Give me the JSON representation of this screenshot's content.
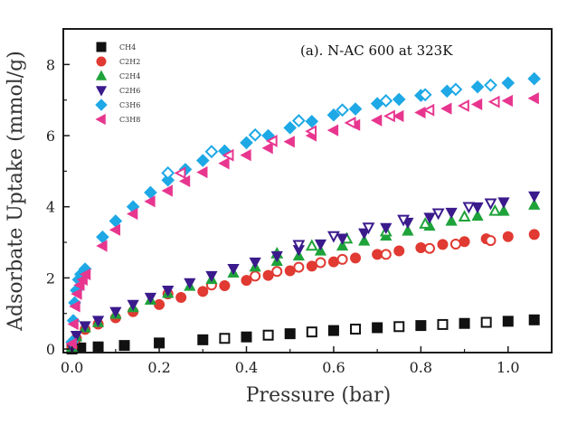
{
  "chart_data": {
    "type": "scatter",
    "annotation": "(a). N-AC 600 at 323K",
    "xlabel": "Pressure (bar)",
    "ylabel": "Adsorbate Uptake (mmol/g)",
    "xlim": [
      -0.02,
      1.1
    ],
    "ylim": [
      -0.1,
      9.0
    ],
    "xticks": [
      0.0,
      0.2,
      0.4,
      0.6,
      0.8,
      1.0
    ],
    "xtick_labels": [
      "0.0",
      "0.2",
      "0.4",
      "0.6",
      "0.8",
      "1.0"
    ],
    "yticks": [
      0,
      2,
      4,
      6,
      8
    ],
    "ytick_labels": [
      "0",
      "2",
      "4",
      "6",
      "8"
    ],
    "grid": false,
    "legend_position": "top-left",
    "series": [
      {
        "name": "CH4",
        "color": "#111111",
        "marker": "square",
        "adsorption": [
          [
            0.0,
            0.0
          ],
          [
            0.02,
            0.03
          ],
          [
            0.06,
            0.06
          ],
          [
            0.12,
            0.1
          ],
          [
            0.2,
            0.17
          ],
          [
            0.3,
            0.26
          ],
          [
            0.4,
            0.34
          ],
          [
            0.5,
            0.43
          ],
          [
            0.6,
            0.52
          ],
          [
            0.7,
            0.6
          ],
          [
            0.8,
            0.66
          ],
          [
            0.9,
            0.72
          ],
          [
            1.0,
            0.78
          ],
          [
            1.06,
            0.82
          ]
        ],
        "desorption": [
          [
            0.95,
            0.75
          ],
          [
            0.85,
            0.69
          ],
          [
            0.75,
            0.63
          ],
          [
            0.65,
            0.56
          ],
          [
            0.55,
            0.48
          ],
          [
            0.45,
            0.39
          ],
          [
            0.35,
            0.3
          ]
        ]
      },
      {
        "name": "C2H2",
        "color": "#e03a32",
        "marker": "circle",
        "adsorption": [
          [
            0.0,
            0.05
          ],
          [
            0.01,
            0.3
          ],
          [
            0.03,
            0.55
          ],
          [
            0.06,
            0.7
          ],
          [
            0.1,
            0.88
          ],
          [
            0.14,
            1.05
          ],
          [
            0.2,
            1.25
          ],
          [
            0.25,
            1.45
          ],
          [
            0.3,
            1.62
          ],
          [
            0.35,
            1.78
          ],
          [
            0.4,
            1.93
          ],
          [
            0.45,
            2.07
          ],
          [
            0.5,
            2.2
          ],
          [
            0.55,
            2.33
          ],
          [
            0.6,
            2.45
          ],
          [
            0.65,
            2.56
          ],
          [
            0.7,
            2.66
          ],
          [
            0.75,
            2.76
          ],
          [
            0.8,
            2.85
          ],
          [
            0.85,
            2.94
          ],
          [
            0.9,
            3.02
          ],
          [
            0.95,
            3.1
          ],
          [
            1.0,
            3.16
          ],
          [
            1.06,
            3.22
          ]
        ],
        "desorption": [
          [
            0.96,
            3.05
          ],
          [
            0.88,
            2.95
          ],
          [
            0.82,
            2.83
          ],
          [
            0.72,
            2.66
          ],
          [
            0.62,
            2.52
          ],
          [
            0.57,
            2.43
          ],
          [
            0.52,
            2.3
          ],
          [
            0.47,
            2.18
          ],
          [
            0.42,
            2.05
          ],
          [
            0.32,
            1.8
          ],
          [
            0.22,
            1.55
          ]
        ]
      },
      {
        "name": "C2H4",
        "color": "#1ea33a",
        "marker": "triangle-up",
        "adsorption": [
          [
            0.0,
            0.05
          ],
          [
            0.01,
            0.35
          ],
          [
            0.03,
            0.6
          ],
          [
            0.06,
            0.75
          ],
          [
            0.1,
            0.98
          ],
          [
            0.14,
            1.17
          ],
          [
            0.18,
            1.38
          ],
          [
            0.22,
            1.57
          ],
          [
            0.27,
            1.77
          ],
          [
            0.32,
            1.96
          ],
          [
            0.37,
            2.14
          ],
          [
            0.42,
            2.31
          ],
          [
            0.47,
            2.47
          ],
          [
            0.52,
            2.62
          ],
          [
            0.57,
            2.76
          ],
          [
            0.62,
            2.9
          ],
          [
            0.67,
            3.04
          ],
          [
            0.72,
            3.18
          ],
          [
            0.77,
            3.32
          ],
          [
            0.82,
            3.46
          ],
          [
            0.87,
            3.6
          ],
          [
            0.93,
            3.74
          ],
          [
            0.99,
            3.88
          ],
          [
            1.06,
            4.05
          ]
        ],
        "desorption": [
          [
            0.97,
            3.88
          ],
          [
            0.9,
            3.72
          ],
          [
            0.81,
            3.52
          ],
          [
            0.72,
            3.3
          ],
          [
            0.63,
            3.1
          ],
          [
            0.55,
            2.9
          ],
          [
            0.47,
            2.68
          ]
        ]
      },
      {
        "name": "C2H6",
        "color": "#3b1a8c",
        "marker": "triangle-down",
        "adsorption": [
          [
            0.0,
            0.05
          ],
          [
            0.01,
            0.38
          ],
          [
            0.03,
            0.65
          ],
          [
            0.06,
            0.8
          ],
          [
            0.1,
            1.05
          ],
          [
            0.14,
            1.25
          ],
          [
            0.18,
            1.45
          ],
          [
            0.22,
            1.65
          ],
          [
            0.27,
            1.86
          ],
          [
            0.32,
            2.06
          ],
          [
            0.37,
            2.26
          ],
          [
            0.42,
            2.44
          ],
          [
            0.47,
            2.62
          ],
          [
            0.52,
            2.79
          ],
          [
            0.57,
            2.95
          ],
          [
            0.62,
            3.11
          ],
          [
            0.67,
            3.26
          ],
          [
            0.72,
            3.41
          ],
          [
            0.77,
            3.56
          ],
          [
            0.82,
            3.7
          ],
          [
            0.87,
            3.84
          ],
          [
            0.93,
            3.99
          ],
          [
            0.99,
            4.13
          ],
          [
            1.06,
            4.3
          ]
        ],
        "desorption": [
          [
            0.96,
            4.1
          ],
          [
            0.91,
            4.0
          ],
          [
            0.84,
            3.82
          ],
          [
            0.76,
            3.64
          ],
          [
            0.68,
            3.42
          ],
          [
            0.6,
            3.18
          ],
          [
            0.52,
            2.93
          ]
        ]
      },
      {
        "name": "C3H6",
        "color": "#1ea8e6",
        "marker": "diamond",
        "adsorption": [
          [
            0.0,
            0.2
          ],
          [
            0.003,
            0.8
          ],
          [
            0.006,
            1.3
          ],
          [
            0.01,
            1.65
          ],
          [
            0.015,
            1.95
          ],
          [
            0.02,
            2.1
          ],
          [
            0.03,
            2.25
          ],
          [
            0.07,
            3.15
          ],
          [
            0.1,
            3.6
          ],
          [
            0.14,
            4.0
          ],
          [
            0.18,
            4.4
          ],
          [
            0.22,
            4.75
          ],
          [
            0.26,
            5.05
          ],
          [
            0.3,
            5.3
          ],
          [
            0.35,
            5.57
          ],
          [
            0.4,
            5.8
          ],
          [
            0.45,
            6.0
          ],
          [
            0.5,
            6.22
          ],
          [
            0.55,
            6.4
          ],
          [
            0.6,
            6.58
          ],
          [
            0.65,
            6.75
          ],
          [
            0.7,
            6.9
          ],
          [
            0.75,
            7.02
          ],
          [
            0.8,
            7.13
          ],
          [
            0.86,
            7.25
          ],
          [
            0.93,
            7.37
          ],
          [
            1.0,
            7.48
          ],
          [
            1.06,
            7.6
          ]
        ],
        "desorption": [
          [
            0.96,
            7.42
          ],
          [
            0.88,
            7.3
          ],
          [
            0.81,
            7.15
          ],
          [
            0.72,
            6.98
          ],
          [
            0.62,
            6.72
          ],
          [
            0.52,
            6.42
          ],
          [
            0.42,
            6.02
          ],
          [
            0.32,
            5.55
          ],
          [
            0.22,
            4.95
          ]
        ]
      },
      {
        "name": "C3H8",
        "color": "#e8368f",
        "marker": "triangle-left",
        "adsorption": [
          [
            0.0,
            0.15
          ],
          [
            0.004,
            0.7
          ],
          [
            0.008,
            1.2
          ],
          [
            0.012,
            1.55
          ],
          [
            0.018,
            1.8
          ],
          [
            0.025,
            1.95
          ],
          [
            0.032,
            2.1
          ],
          [
            0.07,
            2.9
          ],
          [
            0.1,
            3.35
          ],
          [
            0.14,
            3.8
          ],
          [
            0.18,
            4.15
          ],
          [
            0.22,
            4.45
          ],
          [
            0.26,
            4.72
          ],
          [
            0.3,
            4.97
          ],
          [
            0.35,
            5.22
          ],
          [
            0.4,
            5.45
          ],
          [
            0.45,
            5.65
          ],
          [
            0.5,
            5.83
          ],
          [
            0.55,
            6.0
          ],
          [
            0.6,
            6.15
          ],
          [
            0.65,
            6.3
          ],
          [
            0.7,
            6.43
          ],
          [
            0.75,
            6.55
          ],
          [
            0.8,
            6.65
          ],
          [
            0.86,
            6.76
          ],
          [
            0.93,
            6.88
          ],
          [
            1.0,
            6.98
          ],
          [
            1.06,
            7.05
          ]
        ],
        "desorption": [
          [
            0.97,
            6.95
          ],
          [
            0.9,
            6.84
          ],
          [
            0.82,
            6.72
          ],
          [
            0.73,
            6.55
          ],
          [
            0.64,
            6.36
          ],
          [
            0.55,
            6.12
          ],
          [
            0.46,
            5.85
          ],
          [
            0.36,
            5.45
          ],
          [
            0.25,
            4.95
          ]
        ]
      }
    ]
  }
}
